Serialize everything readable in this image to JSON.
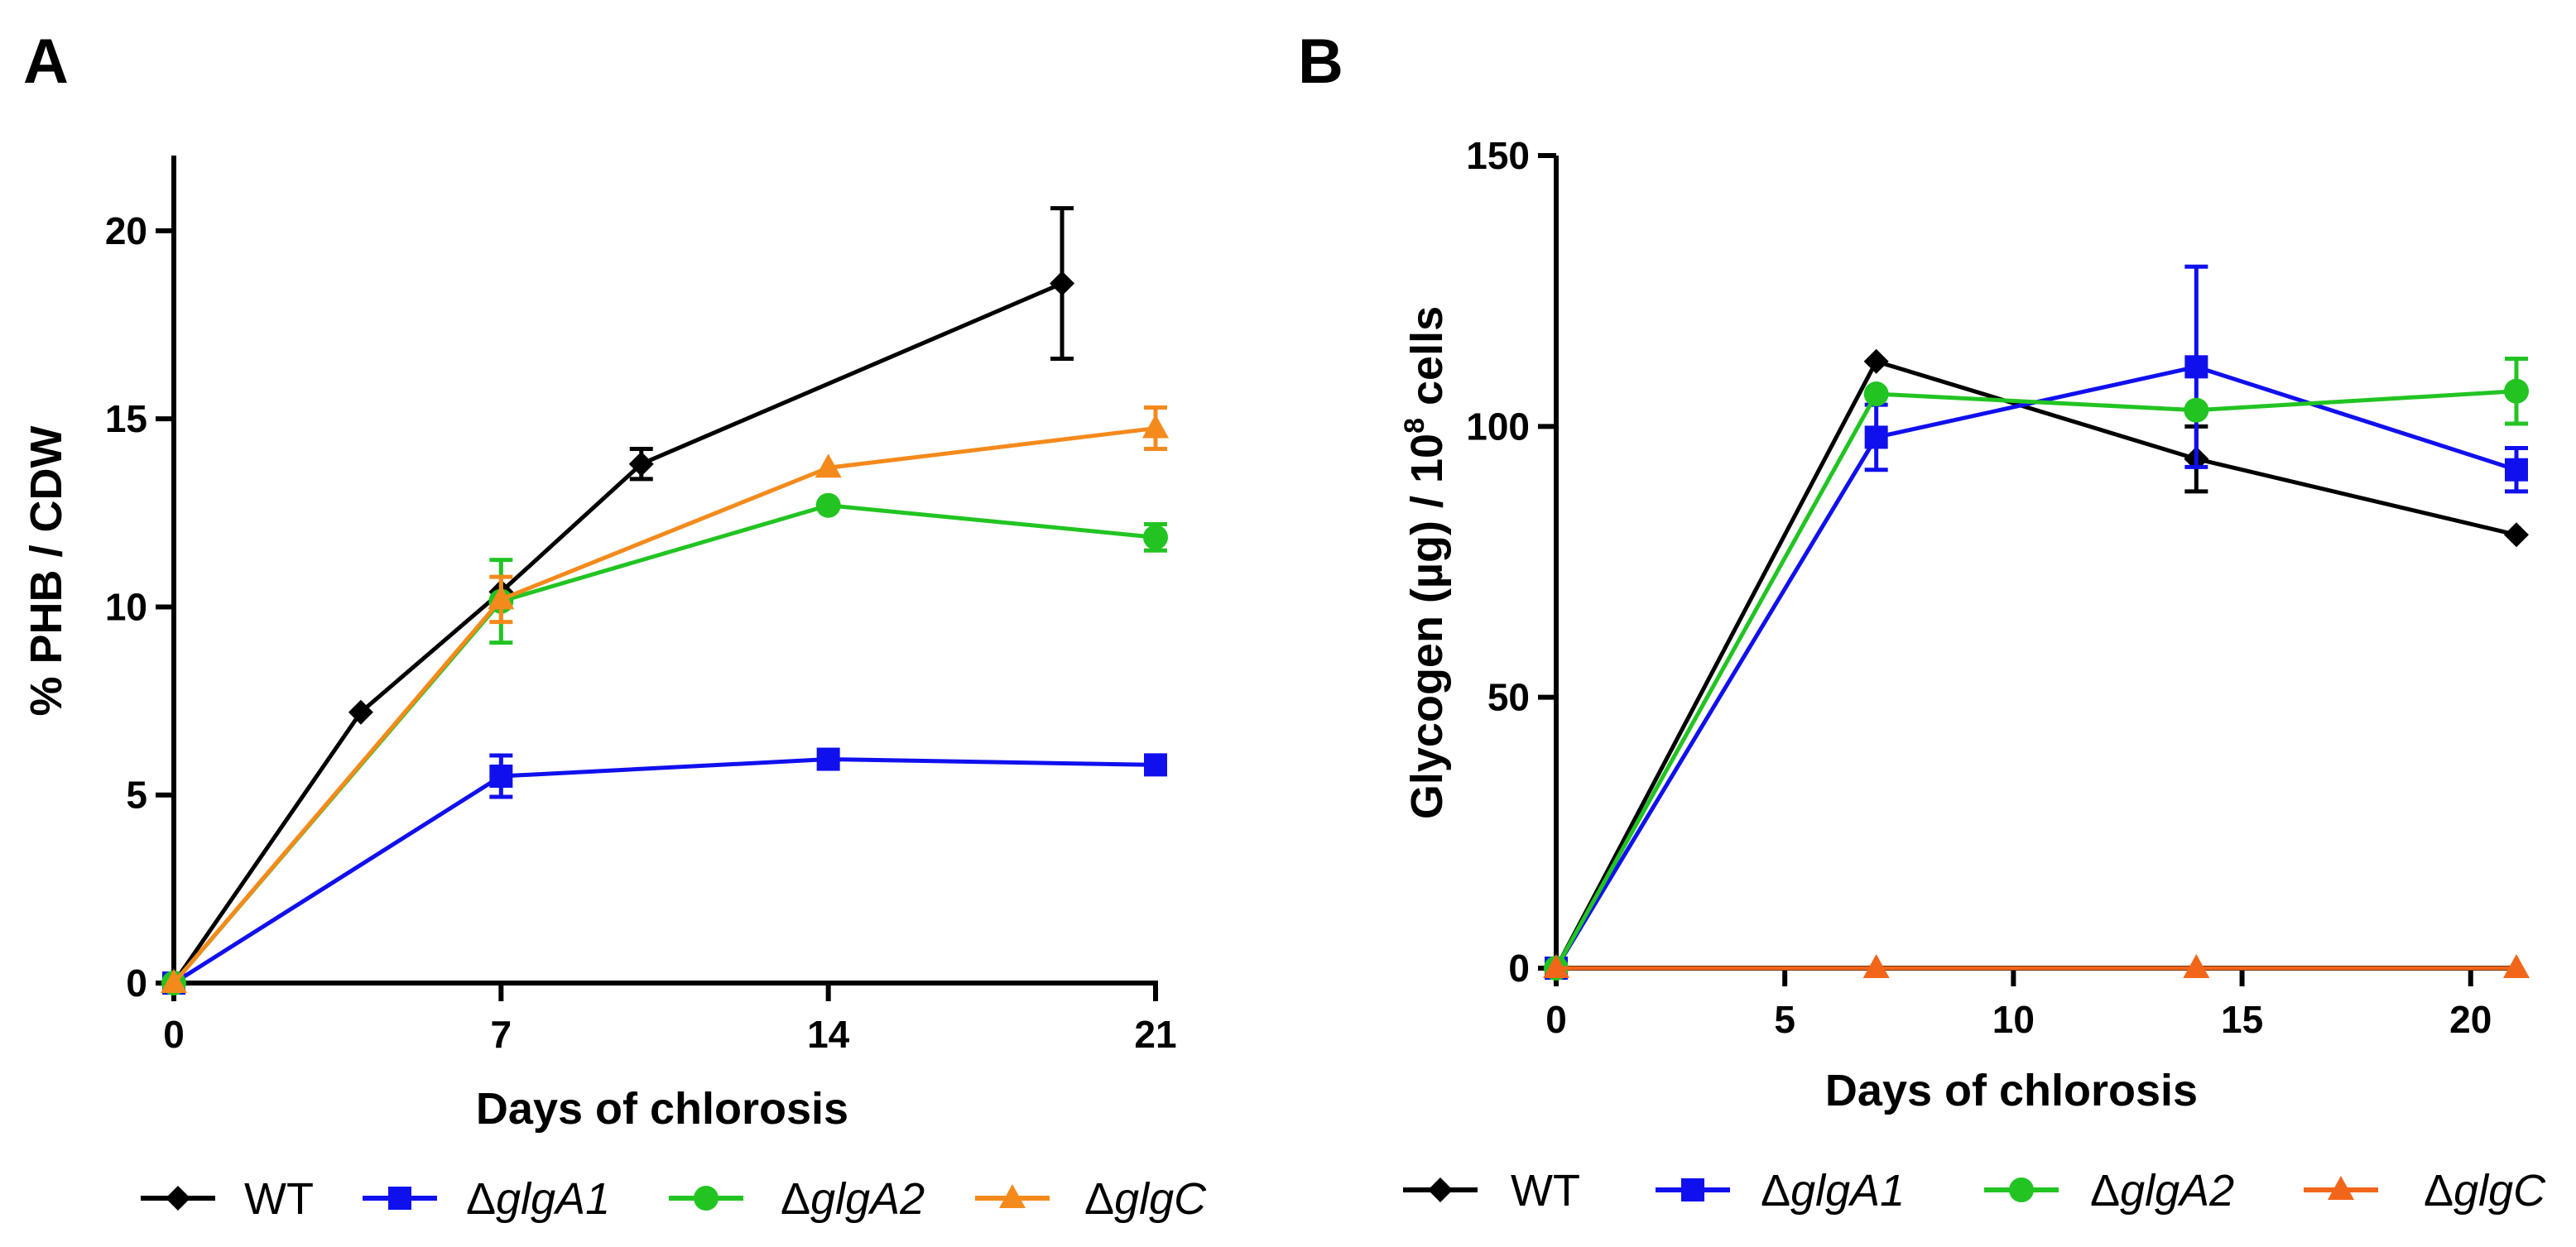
{
  "chart_data": [
    {
      "type": "line",
      "panel": "A",
      "xlabel": "Days of chlorosis",
      "ylabel": "% PHB / CDW",
      "xticks": [
        0,
        7,
        14,
        21
      ],
      "yticks": [
        0,
        5,
        10,
        15,
        20
      ],
      "xlim": [
        0,
        21
      ],
      "ylim": [
        0,
        22
      ],
      "series": [
        {
          "name": "WT",
          "color": "#000000",
          "marker": "diamond",
          "points": [
            [
              0,
              0
            ],
            [
              4,
              7.2
            ],
            [
              7,
              10.4
            ],
            [
              10,
              13.8
            ],
            [
              19,
              18.6
            ]
          ],
          "errors": [
            0,
            0,
            0,
            0.4,
            2.0
          ]
        },
        {
          "name": "ΔglgA1",
          "color": "#1010ee",
          "marker": "square",
          "points": [
            [
              0,
              0
            ],
            [
              7,
              5.5
            ],
            [
              14,
              5.95
            ],
            [
              21,
              5.8
            ]
          ],
          "errors": [
            0,
            0.55,
            0,
            0
          ]
        },
        {
          "name": "ΔglgA2",
          "color": "#22c422",
          "marker": "circle",
          "points": [
            [
              0,
              0
            ],
            [
              7,
              10.15
            ],
            [
              14,
              12.7
            ],
            [
              21,
              11.85
            ]
          ],
          "errors": [
            0,
            1.1,
            0,
            0.35
          ]
        },
        {
          "name": "ΔglgC",
          "color": "#f48a1c",
          "marker": "triangle",
          "points": [
            [
              0,
              0
            ],
            [
              7,
              10.2
            ],
            [
              14,
              13.7
            ],
            [
              21,
              14.75
            ]
          ],
          "errors": [
            0,
            0.6,
            0,
            0.55
          ]
        }
      ],
      "legend": {
        "position": "bottom",
        "entries": [
          {
            "prefix": "",
            "italic": "",
            "plain": "WT"
          },
          {
            "prefix": "Δ",
            "italic": "glgA1",
            "plain": ""
          },
          {
            "prefix": "Δ",
            "italic": "glgA2",
            "plain": ""
          },
          {
            "prefix": "Δ",
            "italic": "glgC",
            "plain": ""
          }
        ]
      }
    },
    {
      "type": "line",
      "panel": "B",
      "xlabel": "Days of chlorosis",
      "ylabel_parts": [
        "Glycogen (µg) / 10",
        "8",
        " cells"
      ],
      "xticks": [
        0,
        5,
        10,
        15,
        20
      ],
      "yticks": [
        0,
        50,
        100,
        150
      ],
      "xlim": [
        0,
        21
      ],
      "ylim": [
        0,
        150
      ],
      "series": [
        {
          "name": "WT",
          "color": "#000000",
          "marker": "diamond",
          "points": [
            [
              0,
              0
            ],
            [
              7,
              112
            ],
            [
              14,
              94
            ],
            [
              21,
              80
            ]
          ],
          "errors": [
            0,
            0,
            6,
            0
          ]
        },
        {
          "name": "ΔglgA1",
          "color": "#1010ee",
          "marker": "square",
          "points": [
            [
              0,
              0
            ],
            [
              7,
              98
            ],
            [
              14,
              111
            ],
            [
              21,
              92
            ]
          ],
          "errors": [
            0,
            6,
            18.5,
            4
          ]
        },
        {
          "name": "ΔglgA2",
          "color": "#22c422",
          "marker": "circle",
          "points": [
            [
              0,
              0
            ],
            [
              7,
              106
            ],
            [
              14,
              103
            ],
            [
              21,
              106.5
            ]
          ],
          "errors": [
            0,
            0,
            0,
            6
          ]
        },
        {
          "name": "ΔglgC",
          "color": "#f2661a",
          "marker": "triangle",
          "points": [
            [
              0,
              0
            ],
            [
              7,
              0
            ],
            [
              14,
              0
            ],
            [
              21,
              0
            ]
          ],
          "errors": [
            0,
            0,
            0,
            0
          ]
        }
      ],
      "legend": {
        "position": "bottom",
        "entries": [
          {
            "prefix": "",
            "italic": "",
            "plain": "WT"
          },
          {
            "prefix": "Δ",
            "italic": "glgA1",
            "plain": ""
          },
          {
            "prefix": "Δ",
            "italic": "glgA2",
            "plain": ""
          },
          {
            "prefix": "Δ",
            "italic": "glgC",
            "plain": ""
          }
        ]
      }
    }
  ]
}
